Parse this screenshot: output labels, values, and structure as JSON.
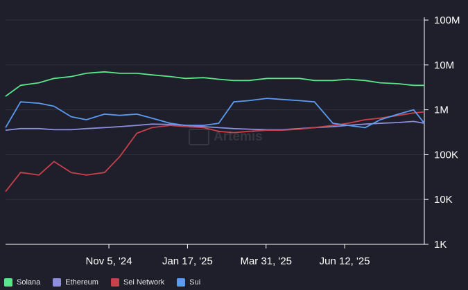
{
  "chart_data": {
    "type": "line",
    "title": "",
    "xlabel": "",
    "ylabel": "",
    "y_scale": "log",
    "ylim": [
      1000,
      100000000
    ],
    "y_ticks": [
      {
        "value": 100000000,
        "label": "100M"
      },
      {
        "value": 10000000,
        "label": "10M"
      },
      {
        "value": 1000000,
        "label": "1M"
      },
      {
        "value": 100000,
        "label": "100K"
      },
      {
        "value": 10000,
        "label": "10K"
      },
      {
        "value": 1000,
        "label": "1K"
      }
    ],
    "x_range": [
      "2024-08-01",
      "2025-08-25"
    ],
    "x_ticks": [
      {
        "date": "2024-11-05",
        "label": "Nov 5, '24"
      },
      {
        "date": "2025-01-17",
        "label": "Jan 17, '25"
      },
      {
        "date": "2025-03-31",
        "label": "Mar 31, '25"
      },
      {
        "date": "2025-06-12",
        "label": "Jun 12, '25"
      }
    ],
    "grid": "horizontal",
    "legend_position": "bottom-left",
    "x": [
      "2024-08-01",
      "2024-08-15",
      "2024-09-01",
      "2024-09-15",
      "2024-10-01",
      "2024-10-15",
      "2024-11-01",
      "2024-11-15",
      "2024-12-01",
      "2024-12-15",
      "2025-01-01",
      "2025-01-15",
      "2025-02-01",
      "2025-02-15",
      "2025-03-01",
      "2025-03-15",
      "2025-04-01",
      "2025-04-15",
      "2025-05-01",
      "2025-05-15",
      "2025-06-01",
      "2025-06-15",
      "2025-07-01",
      "2025-07-15",
      "2025-08-01",
      "2025-08-15",
      "2025-08-25"
    ],
    "series": [
      {
        "name": "Solana",
        "color": "#5ae68a",
        "values": [
          2000000,
          3500000,
          4000000,
          5000000,
          5500000,
          6500000,
          7000000,
          6500000,
          6500000,
          6000000,
          5500000,
          5000000,
          5200000,
          4800000,
          4500000,
          4500000,
          5000000,
          5000000,
          5000000,
          4500000,
          4500000,
          4800000,
          4500000,
          4000000,
          3800000,
          3500000,
          3500000
        ]
      },
      {
        "name": "Ethereum",
        "color": "#8e8ee0",
        "values": [
          350000,
          380000,
          380000,
          360000,
          360000,
          380000,
          400000,
          420000,
          450000,
          480000,
          470000,
          450000,
          420000,
          400000,
          380000,
          370000,
          360000,
          360000,
          380000,
          400000,
          420000,
          450000,
          480000,
          500000,
          520000,
          550000,
          500000
        ]
      },
      {
        "name": "Sei Network",
        "color": "#c8404a",
        "values": [
          15000,
          40000,
          35000,
          70000,
          40000,
          35000,
          40000,
          90000,
          300000,
          400000,
          450000,
          420000,
          400000,
          330000,
          310000,
          330000,
          350000,
          350000,
          370000,
          400000,
          450000,
          500000,
          600000,
          650000,
          750000,
          850000,
          900000
        ]
      },
      {
        "name": "Sui",
        "color": "#5b9bf0",
        "values": [
          400000,
          1500000,
          1400000,
          1200000,
          700000,
          600000,
          800000,
          750000,
          800000,
          650000,
          500000,
          450000,
          450000,
          500000,
          1500000,
          1600000,
          1800000,
          1700000,
          1600000,
          1500000,
          500000,
          450000,
          400000,
          600000,
          800000,
          1000000,
          500000
        ]
      }
    ]
  },
  "watermark": "Artemis"
}
